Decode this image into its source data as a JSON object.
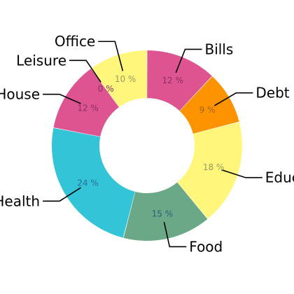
{
  "chart_data": {
    "type": "pie",
    "variant": "donut",
    "title": "",
    "legend": "none",
    "value_suffix": " %",
    "slices": [
      {
        "label": "Bills",
        "value": 12,
        "color": "#de5490",
        "label_color": "#8a2f63"
      },
      {
        "label": "Debt",
        "value": 9,
        "color": "#fe9300",
        "label_color": "#a3620f"
      },
      {
        "label": "Education",
        "value": 18,
        "color": "#fff67b",
        "label_color": "#9a9a5c"
      },
      {
        "label": "Food",
        "value": 15,
        "color": "#6ba888",
        "label_color": "#2f5e78"
      },
      {
        "label": "Health",
        "value": 24,
        "color": "#33c5d7",
        "label_color": "#2a6f9a"
      },
      {
        "label": "House",
        "value": 12,
        "color": "#de5490",
        "label_color": "#8a2f63"
      },
      {
        "label": "Leisure",
        "value": 0,
        "color": "#de5490",
        "label_color": "#8a2f63"
      },
      {
        "label": "Office",
        "value": 10,
        "color": "#fff67b",
        "label_color": "#9a9a5c"
      }
    ]
  }
}
